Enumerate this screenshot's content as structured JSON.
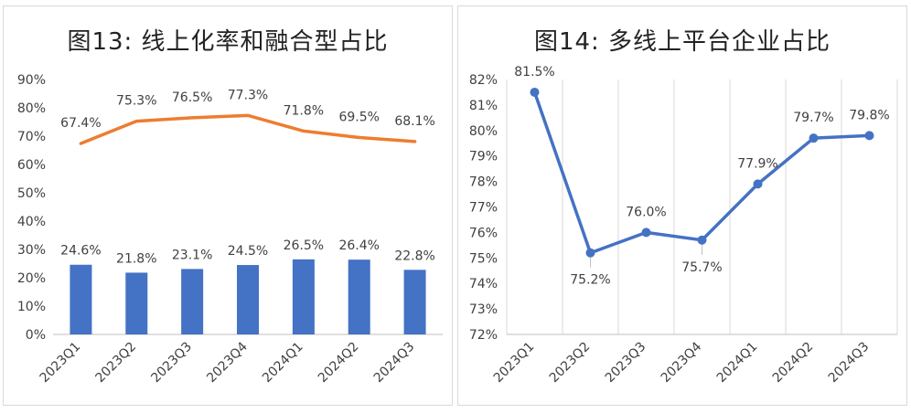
{
  "chart_data": [
    {
      "type": "bar+line",
      "title": "图13: 线上化率和融合型占比",
      "categories": [
        "2023Q1",
        "2023Q2",
        "2023Q3",
        "2023Q4",
        "2024Q1",
        "2024Q2",
        "2024Q3"
      ],
      "series": [
        {
          "kind": "line",
          "color": "#ED7D31",
          "values": [
            67.4,
            75.3,
            76.5,
            77.3,
            71.8,
            69.5,
            68.1
          ]
        },
        {
          "kind": "bar",
          "color": "#4472C4",
          "values": [
            24.6,
            21.8,
            23.1,
            24.5,
            26.5,
            26.4,
            22.8
          ]
        }
      ],
      "ylim": [
        0,
        90
      ],
      "yticks": [
        "0%",
        "10%",
        "20%",
        "30%",
        "40%",
        "50%",
        "60%",
        "70%",
        "80%",
        "90%"
      ],
      "grid": false,
      "data_label_suffix": "%"
    },
    {
      "type": "line",
      "title": "图14: 多线上平台企业占比",
      "categories": [
        "2023Q1",
        "2023Q2",
        "2023Q3",
        "2023Q4",
        "2024Q1",
        "2024Q2",
        "2024Q3"
      ],
      "series": [
        {
          "kind": "line",
          "color": "#4472C4",
          "values": [
            81.5,
            75.2,
            76.0,
            75.7,
            77.9,
            79.7,
            79.8
          ]
        }
      ],
      "ylim": [
        72,
        82
      ],
      "yticks": [
        "72%",
        "73%",
        "74%",
        "75%",
        "76%",
        "77%",
        "78%",
        "79%",
        "80%",
        "81%",
        "82%"
      ],
      "grid": "vertical",
      "data_label_suffix": "%"
    }
  ]
}
